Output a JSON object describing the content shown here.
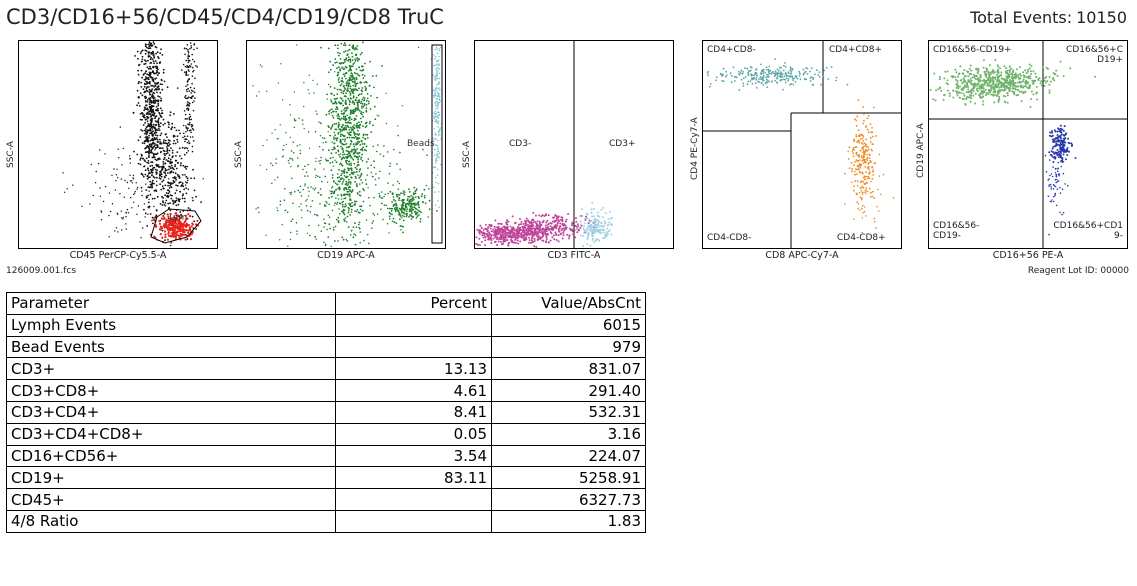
{
  "header": {
    "title": "CD3/CD16+56/CD45/CD4/CD19/CD8 TruC",
    "total_events_label": "Total Events:",
    "total_events": "10150"
  },
  "footer": {
    "filename": "126009.001.fcs",
    "reagent_lot": "Reagent Lot ID: 00000"
  },
  "chart_data": [
    {
      "type": "scatter",
      "xlabel": "CD45 PerCP-Cy5.5-A",
      "ylabel": "SSC-A",
      "gates": [
        "Lym"
      ],
      "colors": [
        "#111111",
        "#e8231c"
      ]
    },
    {
      "type": "scatter",
      "xlabel": "CD19 APC-A",
      "ylabel": "SSC-A",
      "gates": [
        "Beads"
      ],
      "colors": [
        "#1e7f2a",
        "#7ec9d6"
      ]
    },
    {
      "type": "scatter",
      "xlabel": "CD3 FITC-A",
      "ylabel": "SSC-A",
      "quadrants": [
        "CD3-",
        "CD3+"
      ],
      "colors": [
        "#c0449a",
        "#9fd3e4"
      ]
    },
    {
      "type": "scatter",
      "xlabel": "CD8 APC-Cy7-A",
      "ylabel": "CD4 PE-Cy7-A",
      "quadrants": [
        "CD4+CD8-",
        "CD4+CD8+",
        "CD4-CD8-",
        "CD4-CD8+"
      ],
      "colors": [
        "#5aa6a8",
        "#f08a1e"
      ]
    },
    {
      "type": "scatter",
      "xlabel": "CD16+56 PE-A",
      "ylabel": "CD19 APC-A",
      "quadrants": [
        "CD16&56-CD19+",
        "CD16&56+C\nD19+",
        "CD16&56-\nCD19-",
        "CD16&56+CD1\n9-"
      ],
      "colors": [
        "#6fb36a",
        "#2a3aa8"
      ]
    },
    {
      "type": "table",
      "columns": [
        "Parameter",
        "Percent",
        "Value/AbsCnt"
      ],
      "rows": [
        [
          "Lymph Events",
          "",
          "6015"
        ],
        [
          "Bead Events",
          "",
          "979"
        ],
        [
          "CD3+",
          "13.13",
          "831.07"
        ],
        [
          "CD3+CD8+",
          "4.61",
          "291.40"
        ],
        [
          "CD3+CD4+",
          "8.41",
          "532.31"
        ],
        [
          "CD3+CD4+CD8+",
          "0.05",
          "3.16"
        ],
        [
          "CD16+CD56+",
          "3.54",
          "224.07"
        ],
        [
          "CD19+",
          "83.11",
          "5258.91"
        ],
        [
          "CD45+",
          "",
          "6327.73"
        ],
        [
          "4/8 Ratio",
          "",
          "1.83"
        ]
      ]
    }
  ]
}
